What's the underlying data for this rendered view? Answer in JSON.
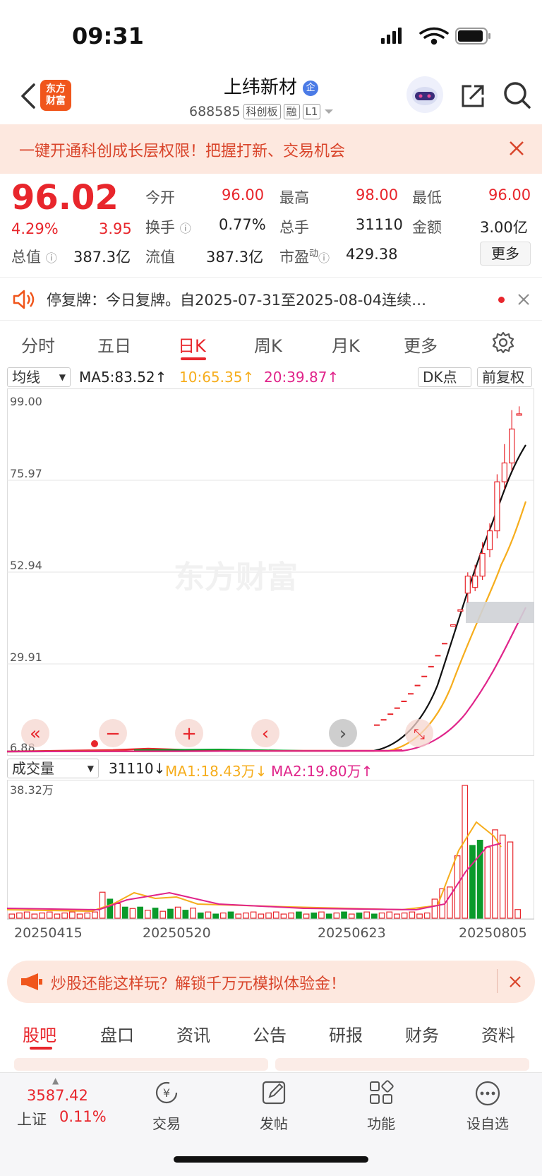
{
  "status": {
    "time": "09:31"
  },
  "header": {
    "logo_line1": "东方",
    "logo_line2": "财富",
    "name": "上纬新材",
    "name_badge": "企",
    "code": "688585",
    "tags": [
      "科创板",
      "融",
      "L1"
    ]
  },
  "promo": {
    "text": "一键开通科创成长层权限！把握打新、交易机会"
  },
  "quote": {
    "price": "96.02",
    "change_pct": "4.29%",
    "change": "3.95",
    "open_label": "今开",
    "open": "96.00",
    "high_label": "最高",
    "high": "98.00",
    "low_label": "最低",
    "low": "96.00",
    "turnover_label": "换手",
    "turnover": "0.77%",
    "volume_label": "总手",
    "volume": "31110",
    "amount_label": "金额",
    "amount": "3.00亿",
    "mktcap_label": "总值",
    "mktcap": "387.3亿",
    "float_label": "流值",
    "float": "387.3亿",
    "pe_label": "市盈",
    "pe_sup": "动",
    "pe": "429.38",
    "more_label": "更多"
  },
  "notice": {
    "text": "停复牌：今日复牌。自2025-07-31至2025-08-04连续…"
  },
  "period_tabs": [
    "分时",
    "五日",
    "日K",
    "周K",
    "月K",
    "更多"
  ],
  "active_tab": "日K",
  "ma_bar": {
    "dropdown": "均线",
    "ma5": "MA5:83.52↑",
    "ma10": "10:65.35↑",
    "ma20": "20:39.87↑",
    "dk": "DK点",
    "adjust": "前复权"
  },
  "colors": {
    "up": "#e8262c",
    "down": "#0a9a2a",
    "ma5": "#111111",
    "ma10": "#f6ad1c",
    "ma20": "#e0248a",
    "accent": "#f0561c"
  },
  "price_axis": [
    "99.00",
    "75.97",
    "52.94",
    "29.91",
    "6.88"
  ],
  "watermark": "东方财富",
  "vol_bar": {
    "dropdown": "成交量",
    "vol": "31110↓",
    "ma1": "MA1:18.43万↓",
    "ma2": "MA2:19.80万↑"
  },
  "vol_axis_top": "38.32万",
  "dates": [
    "20250415",
    "20250520",
    "20250623",
    "20250805"
  ],
  "promo2": {
    "text": "炒股还能这样玩？解锁千万元模拟体验金！"
  },
  "bottom_tabs": [
    "股吧",
    "盘口",
    "资讯",
    "公告",
    "研报",
    "财务",
    "资料"
  ],
  "footer": {
    "index_value": "3587.42",
    "index_name": "上证",
    "index_change": "0.11%",
    "trade": "交易",
    "post": "发帖",
    "func": "功能",
    "watch": "设自选"
  },
  "chart_data": {
    "type": "candlestick",
    "recent_candles": [
      {
        "o": 40.1,
        "c": 40.1,
        "h": 40.1,
        "l": 40.1
      },
      {
        "o": 44.1,
        "c": 44.1,
        "h": 44.1,
        "l": 44.1
      },
      {
        "o": 48.5,
        "c": 53.0,
        "h": 54.0,
        "l": 46.0
      },
      {
        "o": 50.0,
        "c": 53.0,
        "h": 56.0,
        "l": 49.0
      },
      {
        "o": 53.0,
        "c": 59.0,
        "h": 62.0,
        "l": 52.0
      },
      {
        "o": 60.0,
        "c": 65.0,
        "h": 67.0,
        "l": 58.0
      },
      {
        "o": 65.0,
        "c": 78.0,
        "h": 80.0,
        "l": 63.0
      },
      {
        "o": 78.0,
        "c": 83.0,
        "h": 88.0,
        "l": 76.0
      },
      {
        "o": 83.0,
        "c": 92.0,
        "h": 97.0,
        "l": 81.0
      },
      {
        "o": 96.0,
        "c": 96.02,
        "h": 98.0,
        "l": 96.0
      }
    ],
    "limit_up_steps": [
      13.5,
      14.9,
      16.4,
      18.0,
      19.8,
      21.8,
      24.0,
      26.4,
      29.0,
      31.9,
      35.1
    ],
    "price_range": [
      6.88,
      99.0
    ],
    "volume_range_wan": [
      0,
      38.32
    ],
    "ma5_last": 83.52,
    "ma10_last": 65.35,
    "ma20_last": 39.87
  }
}
